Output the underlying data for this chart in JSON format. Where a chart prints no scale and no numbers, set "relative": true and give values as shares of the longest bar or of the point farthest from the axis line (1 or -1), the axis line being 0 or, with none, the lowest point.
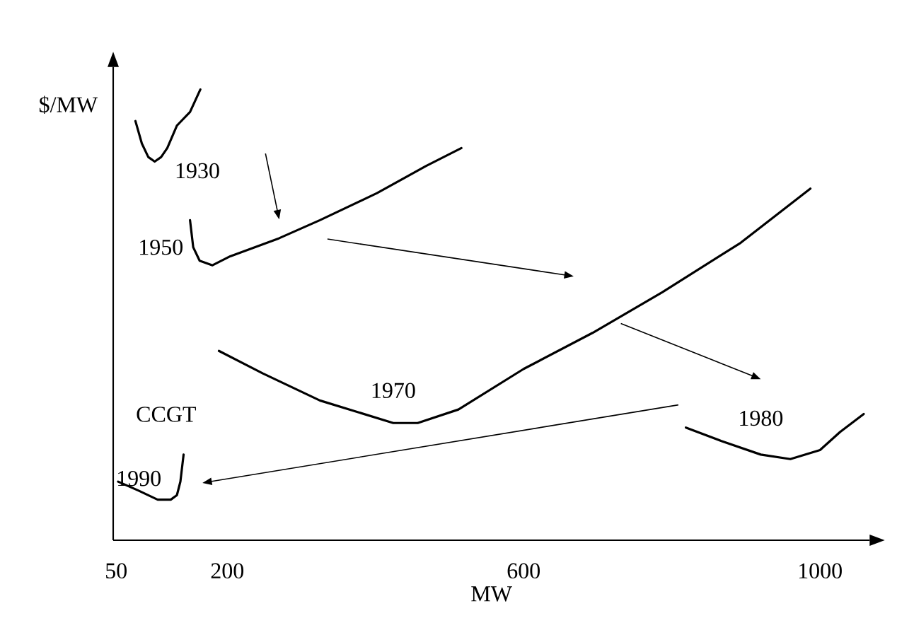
{
  "chart_data": {
    "type": "line",
    "relative": true,
    "xlabel": "MW",
    "ylabel": "$/MW",
    "xlim": [
      46,
      1067
    ],
    "xticks": [
      50,
      200,
      600,
      1000
    ],
    "annotations": [
      "CCGT"
    ],
    "series": [
      {
        "name": "1930",
        "color": "#000000",
        "x": [
          76,
          84.7,
          93.4,
          102,
          110.7,
          119,
          132,
          149.7,
          163.6
        ],
        "values": [
          0.93,
          0.88,
          0.85,
          0.84,
          0.85,
          0.87,
          0.92,
          0.95,
          1
        ]
      },
      {
        "name": "1950",
        "color": "#000000",
        "x": [
          149.7,
          154,
          162.7,
          180,
          204,
          270,
          325,
          402,
          468,
          516
        ],
        "values": [
          0.71,
          0.65,
          0.62,
          0.61,
          0.63,
          0.67,
          0.71,
          0.77,
          0.83,
          0.87
        ]
      },
      {
        "name": "1970",
        "color": "#000000",
        "x": [
          188.7,
          248,
          325,
          424,
          457,
          512,
          600,
          693,
          787,
          893,
          987
        ],
        "values": [
          0.42,
          0.37,
          0.31,
          0.26,
          0.26,
          0.29,
          0.38,
          0.46,
          0.55,
          0.66,
          0.78
        ]
      },
      {
        "name": "1980",
        "color": "#000000",
        "x": [
          819,
          867,
          920,
          960,
          1000,
          1027,
          1059
        ],
        "values": [
          0.25,
          0.22,
          0.19,
          0.18,
          0.2,
          0.24,
          0.28
        ]
      },
      {
        "name": "1990",
        "color": "#000000",
        "x": [
          52.6,
          80.3,
          106,
          123.7,
          132,
          136.7,
          141
        ],
        "values": [
          0.13,
          0.11,
          0.09,
          0.09,
          0.1,
          0.13,
          0.19
        ]
      }
    ]
  }
}
